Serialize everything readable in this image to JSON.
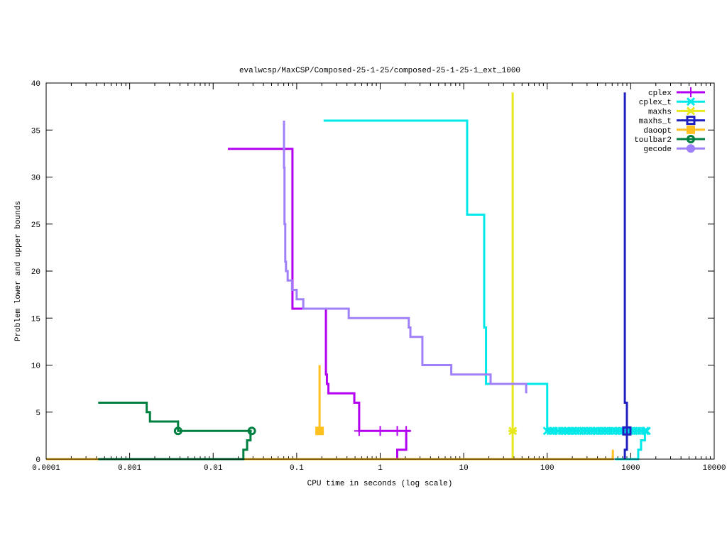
{
  "chart_data": {
    "type": "line",
    "title": "evalwcsp/MaxCSP/Composed-25-1-25/composed-25-1-25-1_ext_1000",
    "xlabel": "CPU time in seconds (log scale)",
    "ylabel": "Problem lower and upper bounds",
    "xscale": "log",
    "xlim": [
      0.0001,
      10000
    ],
    "ylim": [
      0,
      40
    ],
    "xticks": [
      0.0001,
      0.001,
      0.01,
      0.1,
      1,
      10,
      100,
      1000,
      10000
    ],
    "xtick_labels": [
      "0.0001",
      "0.001",
      "0.01",
      "0.1",
      "1",
      "10",
      "100",
      "1000",
      "10000"
    ],
    "yticks": [
      0,
      5,
      10,
      15,
      20,
      25,
      30,
      35,
      40
    ],
    "ytick_labels": [
      "0",
      "5",
      "10",
      "15",
      "20",
      "25",
      "30",
      "35",
      "40"
    ],
    "legend_position": "top-right",
    "series": [
      {
        "name": "cplex",
        "color": "#b400f0",
        "marker": "plus",
        "lines": [
          [
            [
              0.015,
              33
            ],
            [
              0.089,
              33
            ],
            [
              0.089,
              16
            ],
            [
              0.224,
              16
            ],
            [
              0.224,
              9
            ],
            [
              0.23,
              9
            ],
            [
              0.23,
              8
            ],
            [
              0.24,
              8
            ],
            [
              0.24,
              7
            ],
            [
              0.49,
              7
            ],
            [
              0.49,
              6
            ],
            [
              0.56,
              6
            ],
            [
              0.56,
              3
            ],
            [
              2.3,
              3
            ]
          ],
          [
            [
              0.0001,
              0
            ],
            [
              1.6,
              0
            ],
            [
              1.6,
              1
            ],
            [
              2.05,
              1
            ],
            [
              2.05,
              3
            ]
          ]
        ],
        "markers": [
          [
            0.56,
            3
          ],
          [
            1.0,
            3
          ],
          [
            1.6,
            3
          ],
          [
            2.05,
            3
          ]
        ]
      },
      {
        "name": "cplex_t",
        "color": "#00e8e8",
        "marker": "cross",
        "lines": [
          [
            [
              0.21,
              36
            ],
            [
              11,
              36
            ],
            [
              11,
              26
            ],
            [
              17.6,
              26
            ],
            [
              17.6,
              14
            ],
            [
              18.5,
              14
            ],
            [
              18.5,
              8
            ],
            [
              100,
              8
            ],
            [
              100,
              3
            ],
            [
              1550,
              3
            ]
          ],
          [
            [
              650,
              0
            ],
            [
              1230,
              0
            ],
            [
              1230,
              1
            ],
            [
              1330,
              1
            ],
            [
              1330,
              2
            ],
            [
              1480,
              2
            ],
            [
              1480,
              3
            ]
          ]
        ],
        "markers": [
          [
            100,
            3
          ],
          [
            110,
            3
          ],
          [
            120,
            3
          ],
          [
            135,
            3
          ],
          [
            150,
            3
          ],
          [
            165,
            3
          ],
          [
            180,
            3
          ],
          [
            200,
            3
          ],
          [
            220,
            3
          ],
          [
            245,
            3
          ],
          [
            270,
            3
          ],
          [
            300,
            3
          ],
          [
            330,
            3
          ],
          [
            365,
            3
          ],
          [
            400,
            3
          ],
          [
            445,
            3
          ],
          [
            490,
            3
          ],
          [
            540,
            3
          ],
          [
            600,
            3
          ],
          [
            660,
            3
          ],
          [
            730,
            3
          ],
          [
            800,
            3
          ],
          [
            890,
            3
          ],
          [
            980,
            3
          ],
          [
            1080,
            3
          ],
          [
            1200,
            3
          ],
          [
            1330,
            3
          ],
          [
            1480,
            3
          ],
          [
            1550,
            3
          ]
        ]
      },
      {
        "name": "maxhs",
        "color": "#e8e820",
        "marker": "star",
        "lines": [
          [
            [
              38.6,
              0
            ],
            [
              38.6,
              39
            ]
          ]
        ],
        "markers": [
          [
            38.6,
            3
          ]
        ]
      },
      {
        "name": "maxhs_t",
        "color": "#2020c0",
        "marker": "square-open",
        "lines": [
          [
            [
              850,
              39
            ],
            [
              850,
              6
            ],
            [
              900,
              6
            ],
            [
              900,
              3
            ]
          ],
          [
            [
              850,
              0
            ],
            [
              850,
              1
            ],
            [
              900,
              1
            ],
            [
              900,
              3
            ]
          ]
        ],
        "markers": [
          [
            900,
            3
          ]
        ]
      },
      {
        "name": "daoopt",
        "color": "#ffc020",
        "marker": "square-filled",
        "lines": [
          [
            [
              0.188,
              10
            ],
            [
              0.188,
              3
            ]
          ],
          [
            [
              0.0001,
              0
            ],
            [
              611,
              0
            ],
            [
              611,
              1
            ]
          ]
        ],
        "markers": [
          [
            0.188,
            3
          ]
        ]
      },
      {
        "name": "toulbar2",
        "color": "#008040",
        "marker": "circle-open",
        "lines": [
          [
            [
              0.00042,
              6
            ],
            [
              0.0016,
              6
            ],
            [
              0.0016,
              5
            ],
            [
              0.00175,
              5
            ],
            [
              0.00175,
              4
            ],
            [
              0.0038,
              4
            ],
            [
              0.0038,
              3
            ],
            [
              0.029,
              3
            ]
          ],
          [
            [
              0.00042,
              0
            ],
            [
              0.023,
              0
            ],
            [
              0.023,
              1
            ],
            [
              0.0255,
              1
            ],
            [
              0.0255,
              2
            ],
            [
              0.028,
              2
            ],
            [
              0.028,
              3
            ]
          ]
        ],
        "markers": [
          [
            0.0038,
            3
          ],
          [
            0.029,
            3
          ]
        ]
      },
      {
        "name": "gecode",
        "color": "#a080f8",
        "marker": "circle-filled",
        "lines": [
          [
            [
              0.0705,
              36
            ],
            [
              0.0705,
              31
            ],
            [
              0.0715,
              31
            ],
            [
              0.0715,
              25
            ],
            [
              0.073,
              25
            ],
            [
              0.073,
              21
            ],
            [
              0.0745,
              21
            ],
            [
              0.0745,
              20
            ],
            [
              0.078,
              20
            ],
            [
              0.078,
              19
            ],
            [
              0.088,
              19
            ],
            [
              0.088,
              18
            ],
            [
              0.1,
              18
            ],
            [
              0.1,
              17
            ],
            [
              0.12,
              17
            ],
            [
              0.12,
              16
            ],
            [
              0.42,
              16
            ],
            [
              0.42,
              15
            ],
            [
              2.2,
              15
            ],
            [
              2.2,
              14
            ],
            [
              2.3,
              14
            ],
            [
              2.3,
              13
            ],
            [
              3.2,
              13
            ],
            [
              3.2,
              10
            ],
            [
              7.1,
              10
            ],
            [
              7.1,
              9
            ],
            [
              21,
              9
            ],
            [
              21,
              8
            ],
            [
              56,
              8
            ],
            [
              56,
              7
            ]
          ]
        ],
        "markers": []
      }
    ]
  }
}
